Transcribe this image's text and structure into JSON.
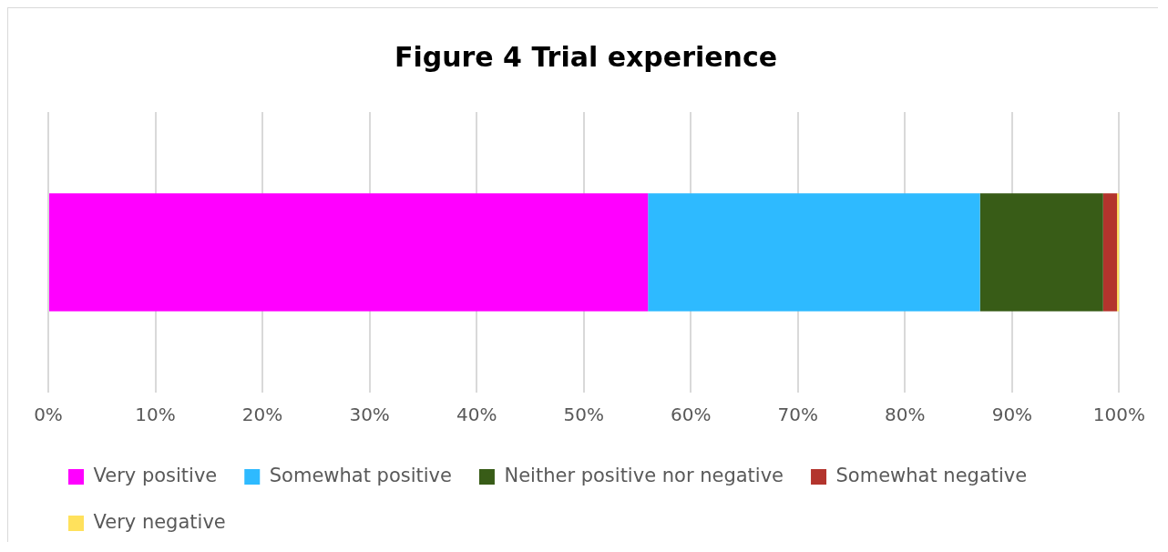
{
  "chart_data": {
    "type": "bar",
    "title": "Figure 4 Trial experience",
    "orientation": "horizontal",
    "stacked": true,
    "categories": [
      null
    ],
    "series": [
      {
        "name": "Very positive",
        "color": "#ff00ff",
        "values": [
          56
        ]
      },
      {
        "name": "Somewhat positive",
        "color": "#2ebaff",
        "values": [
          31
        ]
      },
      {
        "name": "Neither positive nor negative",
        "color": "#385c17",
        "values": [
          11.5
        ]
      },
      {
        "name": "Somewhat negative",
        "color": "#b3342d",
        "values": [
          1.3
        ]
      },
      {
        "name": "Very negative",
        "color": "#ffe15c",
        "values": [
          0.2
        ]
      }
    ],
    "xlim": [
      0,
      100
    ],
    "xticks": [
      {
        "value": 0,
        "label": "0%"
      },
      {
        "value": 10,
        "label": "10%"
      },
      {
        "value": 20,
        "label": "20%"
      },
      {
        "value": 30,
        "label": "30%"
      },
      {
        "value": 40,
        "label": "40%"
      },
      {
        "value": 50,
        "label": "50%"
      },
      {
        "value": 60,
        "label": "60%"
      },
      {
        "value": 70,
        "label": "70%"
      },
      {
        "value": 80,
        "label": "80%"
      },
      {
        "value": 90,
        "label": "90%"
      },
      {
        "value": 100,
        "label": "100%"
      }
    ],
    "grid": "x",
    "legend": "bottom"
  }
}
